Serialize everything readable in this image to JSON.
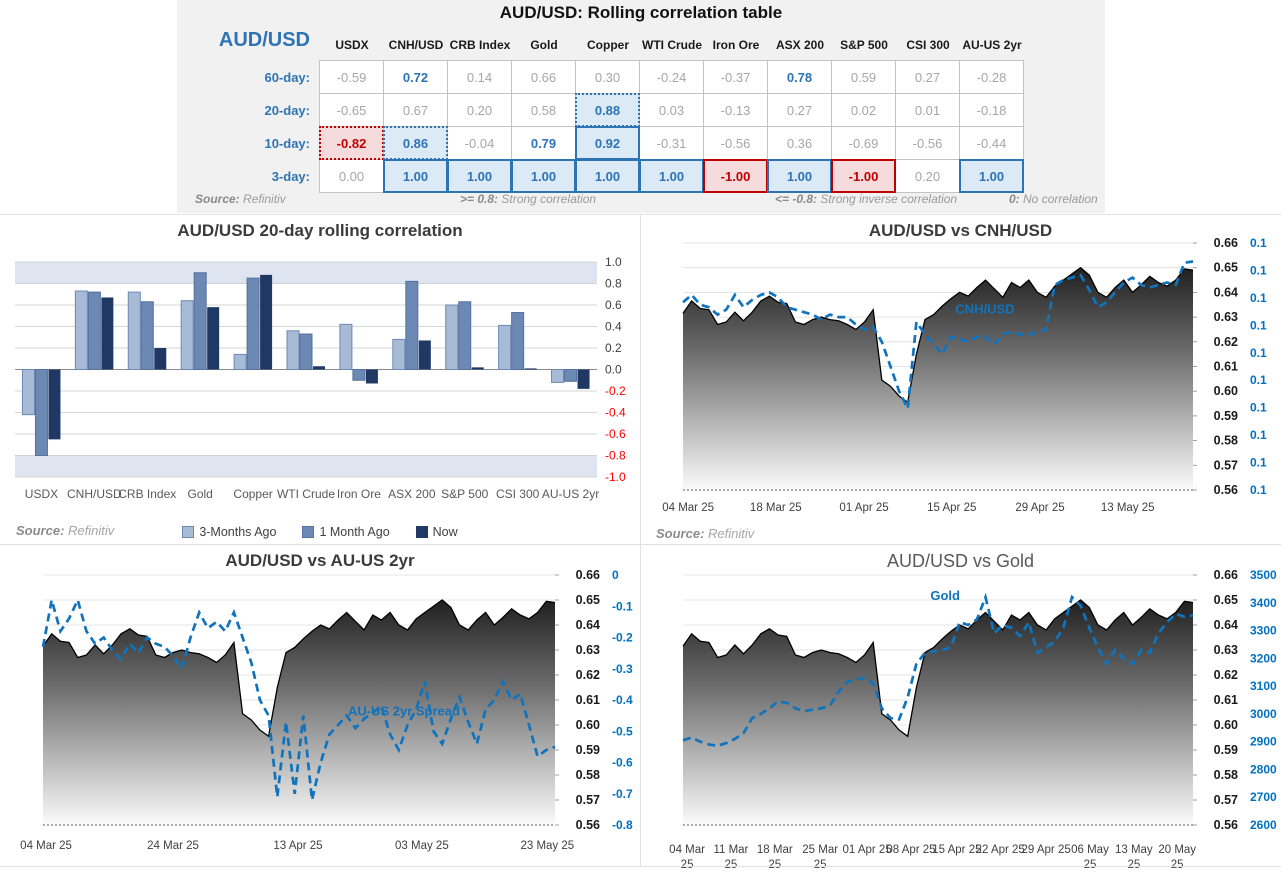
{
  "table": {
    "title": "AUD/USD: Rolling correlation table",
    "corner_label": "AUD/USD",
    "columns": [
      "USDX",
      "CNH/USD",
      "CRB Index",
      "Gold",
      "Copper",
      "WTI Crude",
      "Iron Ore",
      "ASX 200",
      "S&P 500",
      "CSI 300",
      "AU-US 2yr"
    ],
    "rows": [
      {
        "label": "60-day:",
        "cells": [
          {
            "v": "-0.59",
            "s": "g"
          },
          {
            "v": "0.72",
            "s": "b"
          },
          {
            "v": "0.14",
            "s": "g"
          },
          {
            "v": "0.66",
            "s": "g"
          },
          {
            "v": "0.30",
            "s": "g"
          },
          {
            "v": "-0.24",
            "s": "g"
          },
          {
            "v": "-0.37",
            "s": "g"
          },
          {
            "v": "0.78",
            "s": "b"
          },
          {
            "v": "0.59",
            "s": "g"
          },
          {
            "v": "0.27",
            "s": "g"
          },
          {
            "v": "-0.28",
            "s": "g"
          }
        ]
      },
      {
        "label": "20-day:",
        "cells": [
          {
            "v": "-0.65",
            "s": "g"
          },
          {
            "v": "0.67",
            "s": "g"
          },
          {
            "v": "0.20",
            "s": "g"
          },
          {
            "v": "0.58",
            "s": "g"
          },
          {
            "v": "0.88",
            "s": "hbd"
          },
          {
            "v": "0.03",
            "s": "g"
          },
          {
            "v": "-0.13",
            "s": "g"
          },
          {
            "v": "0.27",
            "s": "g"
          },
          {
            "v": "0.02",
            "s": "g"
          },
          {
            "v": "0.01",
            "s": "g"
          },
          {
            "v": "-0.18",
            "s": "g"
          }
        ]
      },
      {
        "label": "10-day:",
        "cells": [
          {
            "v": "-0.82",
            "s": "hrd"
          },
          {
            "v": "0.86",
            "s": "hbd"
          },
          {
            "v": "-0.04",
            "s": "g"
          },
          {
            "v": "0.79",
            "s": "b"
          },
          {
            "v": "0.92",
            "s": "hb"
          },
          {
            "v": "-0.31",
            "s": "g"
          },
          {
            "v": "-0.56",
            "s": "g"
          },
          {
            "v": "0.36",
            "s": "g"
          },
          {
            "v": "-0.69",
            "s": "g"
          },
          {
            "v": "-0.56",
            "s": "g"
          },
          {
            "v": "-0.44",
            "s": "g"
          }
        ]
      },
      {
        "label": "3-day:",
        "cells": [
          {
            "v": "0.00",
            "s": "g"
          },
          {
            "v": "1.00",
            "s": "hb"
          },
          {
            "v": "1.00",
            "s": "hb"
          },
          {
            "v": "1.00",
            "s": "hb"
          },
          {
            "v": "1.00",
            "s": "hb"
          },
          {
            "v": "1.00",
            "s": "hb"
          },
          {
            "v": "-1.00",
            "s": "hr"
          },
          {
            "v": "1.00",
            "s": "hb"
          },
          {
            "v": "-1.00",
            "s": "hr"
          },
          {
            "v": "0.20",
            "s": "g"
          },
          {
            "v": "1.00",
            "s": "hb"
          }
        ]
      }
    ],
    "source_label": "Source:",
    "source_value": "Refinitiv",
    "legend_notes": [
      {
        "key": ">= 0.8:",
        "text": "Strong correlation"
      },
      {
        "key": "<= -0.8:",
        "text": "Strong inverse correlation"
      },
      {
        "key": "0:",
        "text": "No correlation"
      }
    ]
  },
  "colors": {
    "accent_blue": "#2e74b5",
    "alert_red": "#c00000",
    "hl_blue_bg": "#dceaf6",
    "hl_red_bg": "#f5dbdb",
    "line_blue": "#1173bc",
    "neg_axis_red": "#ff0000",
    "band_blue": "#dee4f0",
    "bar_light": "#a7bad6",
    "bar_medium": "#6b89b3",
    "bar_dark": "#1f3864"
  },
  "chart_data": [
    {
      "id": "bar",
      "type": "bar",
      "title": "AUD/USD 20-day rolling correlation",
      "categories": [
        "USDX",
        "CNH/USD",
        "CRB Index",
        "Gold",
        "Copper",
        "WTI Crude",
        "Iron Ore",
        "ASX 200",
        "S&P 500",
        "CSI 300",
        "AU-US 2yr"
      ],
      "series": [
        {
          "name": "3-Months Ago",
          "color": "#a7bad6",
          "border": "#6e88b5",
          "values": [
            -0.42,
            0.73,
            0.72,
            0.64,
            0.14,
            0.36,
            0.42,
            0.28,
            0.6,
            0.41,
            -0.12
          ]
        },
        {
          "name": "1 Month Ago",
          "color": "#6b89b3",
          "border": "#54719f",
          "values": [
            -0.8,
            0.72,
            0.63,
            0.9,
            0.85,
            0.33,
            -0.1,
            0.82,
            0.63,
            0.53,
            -0.11
          ]
        },
        {
          "name": "Now",
          "color": "#1f3864",
          "border": "#1f3864",
          "values": [
            -0.65,
            0.67,
            0.2,
            0.58,
            0.88,
            0.03,
            -0.13,
            0.27,
            0.02,
            0.01,
            -0.18
          ]
        }
      ],
      "ylim": [
        -1.0,
        1.0
      ],
      "ytick_labels": [
        "1.0",
        "0.8",
        "0.6",
        "0.4",
        "0.2",
        "0.0",
        "-0.2",
        "-0.4",
        "-0.6",
        "-0.8",
        "-1.0"
      ],
      "strong_band_threshold": 0.8,
      "grid": true,
      "legend_position": "bottom",
      "source_label": "Source:",
      "source_value": "Refinitiv"
    },
    {
      "id": "cnh",
      "type": "area+line",
      "title": "AUD/USD vs CNH/USD",
      "area_name": "AUD/USD",
      "left_axis_labels": [
        "0.66",
        "0.65",
        "0.64",
        "0.63",
        "0.62",
        "0.61",
        "0.60",
        "0.59",
        "0.58",
        "0.57",
        "0.56"
      ],
      "left_axis_range": [
        0.56,
        0.66
      ],
      "right_axis_labels": [
        "0.1",
        "0.1",
        "0.1",
        "0.1",
        "0.1",
        "0.1",
        "0.1",
        "0.1",
        "0.1",
        "0.1"
      ],
      "x_ticks": [
        {
          "lines": [
            "04 Mar 25"
          ],
          "f": 0.01
        },
        {
          "lines": [
            "18 Mar 25"
          ],
          "f": 0.182
        },
        {
          "lines": [
            "01 Apr 25"
          ],
          "f": 0.355
        },
        {
          "lines": [
            "15 Apr 25"
          ],
          "f": 0.527
        },
        {
          "lines": [
            "29 Apr 25"
          ],
          "f": 0.7
        },
        {
          "lines": [
            "13 May 25"
          ],
          "f": 0.872
        }
      ],
      "area_values": [
        0.6315,
        0.6365,
        0.6335,
        0.633,
        0.627,
        0.628,
        0.632,
        0.6285,
        0.632,
        0.6365,
        0.6385,
        0.636,
        0.6355,
        0.628,
        0.627,
        0.629,
        0.63,
        0.629,
        0.6285,
        0.627,
        0.625,
        0.628,
        0.633,
        0.6045,
        0.602,
        0.598,
        0.5955,
        0.615,
        0.629,
        0.631,
        0.6345,
        0.6375,
        0.64,
        0.6385,
        0.642,
        0.645,
        0.6415,
        0.638,
        0.644,
        0.642,
        0.645,
        0.64,
        0.638,
        0.6425,
        0.645,
        0.6475,
        0.65,
        0.647,
        0.64,
        0.638,
        0.642,
        0.645,
        0.64,
        0.643,
        0.6465,
        0.644,
        0.6425,
        0.645,
        0.6495,
        0.649
      ],
      "overlay": {
        "name": "CNH/USD",
        "units": "left-axis visual scale (secondary axis displays 0.1)",
        "map_from": [
          0.56,
          0.66
        ],
        "label_f": 0.592,
        "label_v": 0.6315,
        "values": [
          0.636,
          0.639,
          0.635,
          0.634,
          0.631,
          0.633,
          0.639,
          0.634,
          0.637,
          0.639,
          0.64,
          0.638,
          0.634,
          0.633,
          0.632,
          0.631,
          0.629,
          0.631,
          0.63,
          0.63,
          0.627,
          0.625,
          0.626,
          0.62,
          0.61,
          0.6,
          0.593,
          0.628,
          0.623,
          0.619,
          0.615,
          0.622,
          0.621,
          0.62,
          0.622,
          0.622,
          0.619,
          0.623,
          0.624,
          0.623,
          0.623,
          0.624,
          0.625,
          0.643,
          0.645,
          0.646,
          0.647,
          0.641,
          0.634,
          0.636,
          0.64,
          0.644,
          0.646,
          0.643,
          0.642,
          0.643,
          0.644,
          0.643,
          0.652,
          0.6525
        ]
      },
      "source_label": "Source:",
      "source_value": "Refinitiv"
    },
    {
      "id": "spread",
      "type": "area+line",
      "title": "AUD/USD vs AU-US 2yr",
      "area_name": "AUD/USD",
      "left_axis_labels": [
        "0.66",
        "0.65",
        "0.64",
        "0.63",
        "0.62",
        "0.61",
        "0.60",
        "0.59",
        "0.58",
        "0.57",
        "0.56"
      ],
      "left_axis_range": [
        0.56,
        0.66
      ],
      "right_axis_labels": [
        "0",
        "-0.1",
        "-0.2",
        "-0.3",
        "-0.4",
        "-0.5",
        "-0.6",
        "-0.7",
        "-0.8"
      ],
      "x_ticks": [
        {
          "lines": [
            "04 Mar 25"
          ],
          "f": 0.006
        },
        {
          "lines": [
            "24 Mar 25"
          ],
          "f": 0.254
        },
        {
          "lines": [
            "13 Apr 25"
          ],
          "f": 0.498
        },
        {
          "lines": [
            "03 May 25"
          ],
          "f": 0.74
        },
        {
          "lines": [
            "23 May 25"
          ],
          "f": 0.985
        }
      ],
      "area_values": [
        0.6315,
        0.6365,
        0.6335,
        0.633,
        0.627,
        0.628,
        0.632,
        0.6285,
        0.632,
        0.6365,
        0.6385,
        0.636,
        0.6355,
        0.628,
        0.627,
        0.629,
        0.63,
        0.629,
        0.6285,
        0.627,
        0.625,
        0.628,
        0.633,
        0.6045,
        0.602,
        0.598,
        0.5955,
        0.615,
        0.629,
        0.631,
        0.6345,
        0.6375,
        0.64,
        0.6385,
        0.642,
        0.645,
        0.6415,
        0.638,
        0.644,
        0.642,
        0.645,
        0.64,
        0.638,
        0.6425,
        0.645,
        0.6475,
        0.65,
        0.647,
        0.64,
        0.638,
        0.642,
        0.645,
        0.64,
        0.643,
        0.6465,
        0.644,
        0.6425,
        0.645,
        0.6495,
        0.649
      ],
      "overlay": {
        "name": "AU-US 2yr Spread",
        "units": "percentage points (right axis)",
        "map_from": [
          -0.8,
          0
        ],
        "label_f": 0.705,
        "label_v": -0.45,
        "values": [
          -0.23,
          -0.08,
          -0.18,
          -0.14,
          -0.08,
          -0.18,
          -0.22,
          -0.2,
          -0.24,
          -0.27,
          -0.22,
          -0.25,
          -0.2,
          -0.22,
          -0.23,
          -0.26,
          -0.3,
          -0.2,
          -0.12,
          -0.17,
          -0.15,
          -0.18,
          -0.12,
          -0.2,
          -0.28,
          -0.4,
          -0.45,
          -0.71,
          -0.47,
          -0.7,
          -0.45,
          -0.72,
          -0.6,
          -0.51,
          -0.48,
          -0.45,
          -0.49,
          -0.46,
          -0.44,
          -0.42,
          -0.51,
          -0.56,
          -0.48,
          -0.43,
          -0.34,
          -0.5,
          -0.54,
          -0.46,
          -0.39,
          -0.47,
          -0.54,
          -0.43,
          -0.4,
          -0.34,
          -0.4,
          -0.38,
          -0.48,
          -0.58,
          -0.56,
          -0.55
        ]
      }
    },
    {
      "id": "gold",
      "type": "area+line",
      "title": "AUD/USD vs Gold",
      "area_name": "AUD/USD",
      "left_axis_labels": [
        "0.66",
        "0.65",
        "0.64",
        "0.63",
        "0.62",
        "0.61",
        "0.60",
        "0.59",
        "0.58",
        "0.57",
        "0.56"
      ],
      "left_axis_range": [
        0.56,
        0.66
      ],
      "right_axis_labels": [
        "3500",
        "3400",
        "3300",
        "3200",
        "3100",
        "3000",
        "2900",
        "2800",
        "2700",
        "2600"
      ],
      "x_ticks": [
        {
          "lines": [
            "04 Mar",
            "25"
          ],
          "f": 0.008
        },
        {
          "lines": [
            "11 Mar",
            "25"
          ],
          "f": 0.094
        },
        {
          "lines": [
            "18 Mar",
            "25"
          ],
          "f": 0.18
        },
        {
          "lines": [
            "25 Mar",
            "25"
          ],
          "f": 0.269
        },
        {
          "lines": [
            "01 Apr 25"
          ],
          "f": 0.361
        },
        {
          "lines": [
            "08 Apr 25"
          ],
          "f": 0.447
        },
        {
          "lines": [
            "15 Apr 25"
          ],
          "f": 0.537
        },
        {
          "lines": [
            "22 Apr 25"
          ],
          "f": 0.622
        },
        {
          "lines": [
            "29 Apr 25"
          ],
          "f": 0.712
        },
        {
          "lines": [
            "06 May",
            "25"
          ],
          "f": 0.798
        },
        {
          "lines": [
            "13 May",
            "25"
          ],
          "f": 0.884
        },
        {
          "lines": [
            "20 May",
            "25"
          ],
          "f": 0.969
        }
      ],
      "area_values": [
        0.6315,
        0.6365,
        0.6335,
        0.633,
        0.627,
        0.628,
        0.632,
        0.6285,
        0.632,
        0.6365,
        0.6385,
        0.636,
        0.6355,
        0.628,
        0.627,
        0.629,
        0.63,
        0.629,
        0.6285,
        0.627,
        0.625,
        0.628,
        0.633,
        0.6045,
        0.602,
        0.598,
        0.5955,
        0.615,
        0.629,
        0.631,
        0.6345,
        0.6375,
        0.64,
        0.6385,
        0.642,
        0.645,
        0.6415,
        0.638,
        0.644,
        0.642,
        0.645,
        0.64,
        0.638,
        0.6425,
        0.645,
        0.6475,
        0.65,
        0.647,
        0.64,
        0.638,
        0.642,
        0.645,
        0.64,
        0.643,
        0.6465,
        0.644,
        0.6425,
        0.645,
        0.6495,
        0.649
      ],
      "overlay": {
        "name": "Gold",
        "units": "USD/oz (right axis)",
        "map_from": [
          2600,
          3500
        ],
        "label_f": 0.514,
        "label_v": 3410,
        "values": [
          2905,
          2915,
          2900,
          2890,
          2885,
          2895,
          2910,
          2930,
          2985,
          3000,
          3020,
          3045,
          3040,
          3020,
          3010,
          3015,
          3020,
          3030,
          3080,
          3115,
          3125,
          3130,
          3110,
          3020,
          2985,
          2980,
          3060,
          3180,
          3220,
          3225,
          3230,
          3240,
          3330,
          3320,
          3340,
          3420,
          3290,
          3320,
          3310,
          3280,
          3330,
          3220,
          3240,
          3260,
          3310,
          3420,
          3390,
          3310,
          3240,
          3180,
          3230,
          3200,
          3180,
          3230,
          3220,
          3290,
          3330,
          3360,
          3350,
          3355
        ]
      }
    }
  ]
}
